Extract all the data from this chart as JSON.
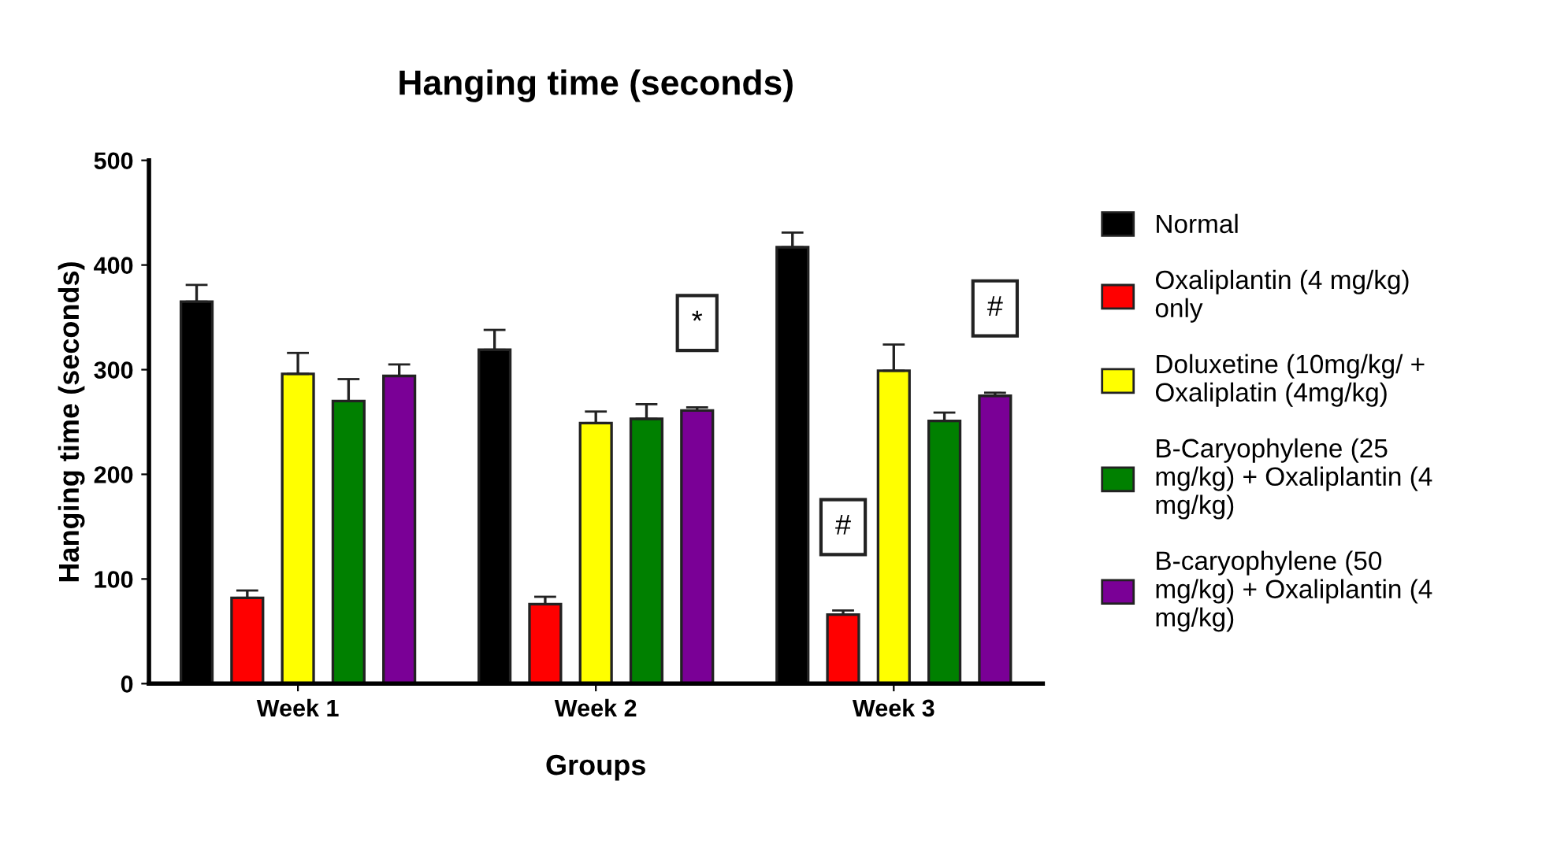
{
  "chart_data": {
    "type": "bar",
    "title": "Hanging time (seconds)",
    "xlabel": "Groups",
    "ylabel": "Hanging time (seconds)",
    "categories": [
      "Week 1",
      "Week 2",
      "Week 3"
    ],
    "series": [
      {
        "name": "Normal",
        "color": "#000000",
        "values": [
          365,
          319,
          417
        ],
        "errors": [
          [
            365,
            381
          ],
          [
            319,
            338
          ],
          [
            417,
            431
          ]
        ]
      },
      {
        "name": "Oxaliplantin (4 mg/kg) only",
        "color": "#ff0000",
        "values": [
          82,
          76,
          66
        ],
        "errors": [
          [
            82,
            89
          ],
          [
            76,
            83
          ],
          [
            66,
            70
          ]
        ],
        "value_labels": [
          null,
          null,
          "#"
        ]
      },
      {
        "name": "Doluxetine (10mg/kg/ + Oxaliplatin (4mg/kg)",
        "color": "#ffff00",
        "values": [
          296,
          249,
          299
        ],
        "errors": [
          [
            296,
            316
          ],
          [
            249,
            260
          ],
          [
            299,
            324
          ]
        ]
      },
      {
        "name": "B-Caryophylene (25 mg/kg) + Oxaliplantin (4 mg/kg)",
        "color": "#008000",
        "values": [
          270,
          253,
          251
        ],
        "errors": [
          [
            270,
            291
          ],
          [
            253,
            267
          ],
          [
            251,
            259
          ]
        ]
      },
      {
        "name": "B-caryophylene (50 mg/kg) + Oxaliplantin (4 mg/kg)",
        "color": "#7a0096",
        "values": [
          294,
          261,
          275
        ],
        "errors": [
          [
            294,
            305
          ],
          [
            261,
            264
          ],
          [
            275,
            278
          ]
        ],
        "value_labels": [
          null,
          "*",
          "#"
        ]
      }
    ],
    "ylim": [
      0,
      500
    ],
    "yticks": [
      0,
      100,
      200,
      300,
      400,
      500
    ],
    "grid": false,
    "legend": "right"
  }
}
